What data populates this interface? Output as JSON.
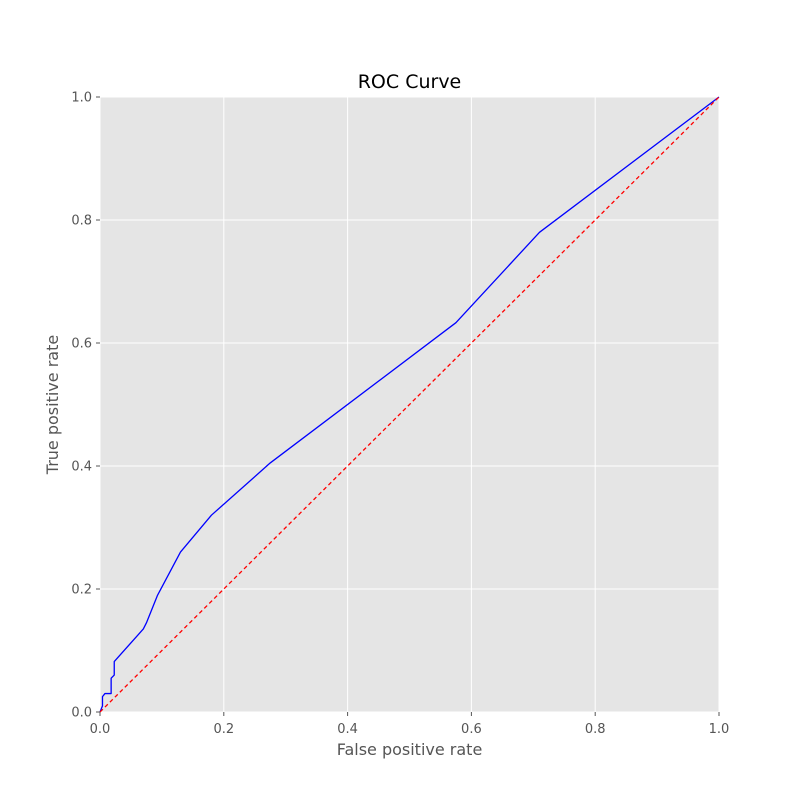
{
  "chart_data": {
    "type": "line",
    "title": "ROC Curve",
    "xlabel": "False positive rate",
    "ylabel": "True positive rate",
    "xlim": [
      0,
      1
    ],
    "ylim": [
      0,
      1
    ],
    "xticks": [
      "0.0",
      "0.2",
      "0.4",
      "0.6",
      "0.8",
      "1.0"
    ],
    "yticks": [
      "0.0",
      "0.2",
      "0.4",
      "0.6",
      "0.8",
      "1.0"
    ],
    "grid": true,
    "background_color": "#e5e5e5",
    "grid_color": "#ffffff",
    "series": [
      {
        "color": "#0000ff",
        "style": "solid",
        "x": [
          0.0,
          0.004,
          0.004,
          0.008,
          0.018,
          0.018,
          0.023,
          0.023,
          0.07,
          0.075,
          0.093,
          0.13,
          0.18,
          0.275,
          0.575,
          0.71,
          1.0
        ],
        "y": [
          0.0,
          0.01,
          0.025,
          0.03,
          0.03,
          0.055,
          0.06,
          0.082,
          0.135,
          0.145,
          0.19,
          0.26,
          0.32,
          0.405,
          0.633,
          0.78,
          1.0
        ]
      },
      {
        "color": "#ff0000",
        "style": "dashed",
        "x": [
          0,
          1
        ],
        "y": [
          0,
          1
        ]
      }
    ]
  }
}
